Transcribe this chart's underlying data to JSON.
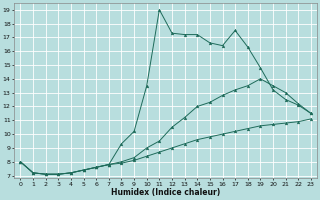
{
  "bg_color": "#b8dede",
  "grid_color": "#ffffff",
  "line_color": "#1e6b5a",
  "xlabel": "Humidex (Indice chaleur)",
  "xlim": [
    -0.5,
    23.5
  ],
  "ylim": [
    6.8,
    19.5
  ],
  "xticks": [
    0,
    1,
    2,
    3,
    4,
    5,
    6,
    7,
    8,
    9,
    10,
    11,
    12,
    13,
    14,
    15,
    16,
    17,
    18,
    19,
    20,
    21,
    22,
    23
  ],
  "yticks": [
    7,
    8,
    9,
    10,
    11,
    12,
    13,
    14,
    15,
    16,
    17,
    18,
    19
  ],
  "line1_x": [
    0,
    1,
    2,
    3,
    4,
    5,
    6,
    7,
    8,
    9,
    10,
    11,
    12,
    13,
    14,
    15,
    16,
    17,
    18,
    19,
    20,
    21,
    22,
    23
  ],
  "line1_y": [
    8.0,
    7.2,
    7.1,
    7.1,
    7.2,
    7.4,
    7.6,
    7.8,
    9.3,
    10.2,
    13.5,
    19.0,
    17.3,
    17.2,
    17.2,
    16.6,
    16.4,
    17.5,
    16.3,
    14.8,
    13.2,
    12.5,
    12.1,
    11.5
  ],
  "line2_x": [
    0,
    1,
    2,
    3,
    4,
    5,
    6,
    7,
    8,
    9,
    10,
    11,
    12,
    13,
    14,
    15,
    16,
    17,
    18,
    19,
    20,
    21,
    22,
    23
  ],
  "line2_y": [
    8.0,
    7.2,
    7.1,
    7.1,
    7.2,
    7.4,
    7.6,
    7.8,
    8.0,
    8.3,
    9.0,
    9.5,
    10.5,
    11.2,
    12.0,
    12.3,
    12.8,
    13.2,
    13.5,
    14.0,
    13.5,
    13.0,
    12.2,
    11.5
  ],
  "line3_x": [
    0,
    1,
    2,
    3,
    4,
    5,
    6,
    7,
    8,
    9,
    10,
    11,
    12,
    13,
    14,
    15,
    16,
    17,
    18,
    19,
    20,
    21,
    22,
    23
  ],
  "line3_y": [
    8.0,
    7.2,
    7.1,
    7.1,
    7.2,
    7.4,
    7.6,
    7.8,
    7.9,
    8.1,
    8.4,
    8.7,
    9.0,
    9.3,
    9.6,
    9.8,
    10.0,
    10.2,
    10.4,
    10.6,
    10.7,
    10.8,
    10.9,
    11.1
  ]
}
